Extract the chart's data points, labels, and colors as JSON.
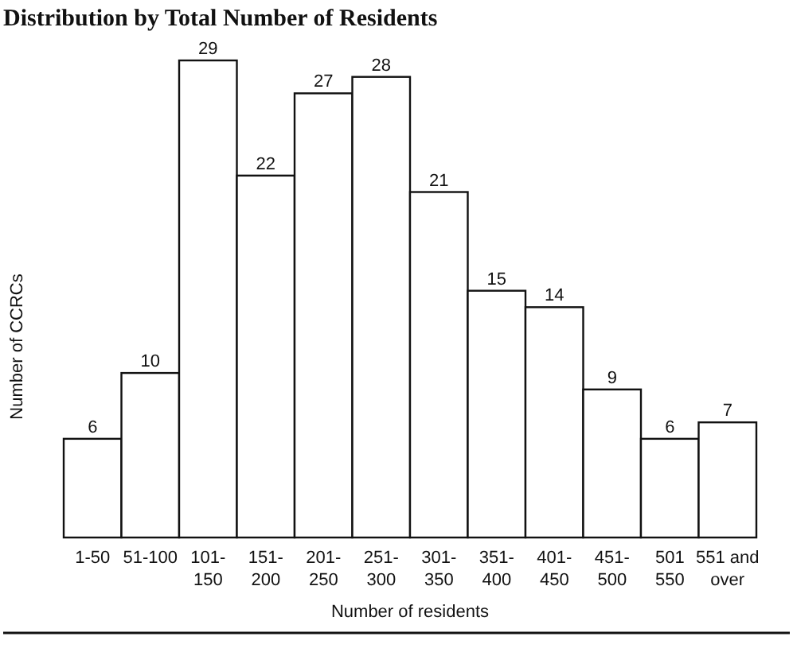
{
  "chart_data": {
    "type": "bar",
    "title": "Distribution by Total Number of Residents",
    "xlabel": "Number of residents",
    "ylabel": "Number of CCRCs",
    "categories": [
      "1-50",
      "51-100",
      "101-\n150",
      "151-\n200",
      "201-\n250",
      "251-\n300",
      "301-\n350",
      "351-\n400",
      "401-\n450",
      "451-\n500",
      "501\n550",
      "551 and\nover"
    ],
    "values": [
      6,
      10,
      29,
      22,
      27,
      28,
      21,
      15,
      14,
      9,
      6,
      7
    ],
    "color": "#ffffff",
    "data_labels": true
  }
}
